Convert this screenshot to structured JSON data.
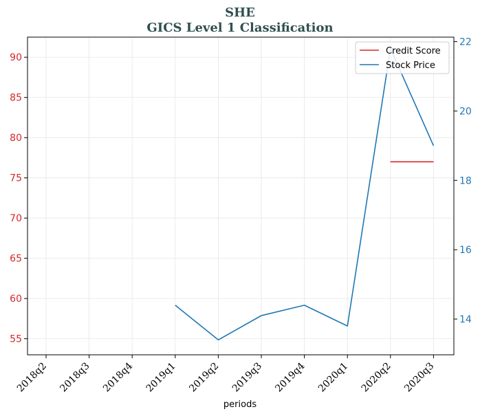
{
  "chart_data": {
    "type": "line",
    "title": "SHE",
    "subtitle": "GICS Level 1 Classification",
    "xlabel": "periods",
    "categories": [
      "2018q2",
      "2018q3",
      "2018q4",
      "2019q1",
      "2019q2",
      "2019q3",
      "2019q4",
      "2020q1",
      "2020q2",
      "2020q3"
    ],
    "y_left": {
      "ylim": [
        53,
        92.5
      ],
      "ticks": [
        55,
        60,
        65,
        70,
        75,
        80,
        85,
        90
      ],
      "color": "#d62728"
    },
    "y_right": {
      "ylim": [
        12.97,
        22.13
      ],
      "ticks": [
        14,
        16,
        18,
        20,
        22
      ],
      "color": "#1f77b4"
    },
    "grid": true,
    "legend_position": "top-right",
    "series": [
      {
        "name": "Credit Score",
        "axis": "left",
        "color": "#d62728",
        "values": [
          null,
          null,
          null,
          null,
          null,
          null,
          null,
          null,
          77,
          77
        ]
      },
      {
        "name": "Stock Price",
        "axis": "right",
        "color": "#1f77b4",
        "values": [
          null,
          null,
          null,
          14.4,
          13.4,
          14.1,
          14.4,
          13.8,
          21.8,
          19.0
        ]
      }
    ]
  }
}
